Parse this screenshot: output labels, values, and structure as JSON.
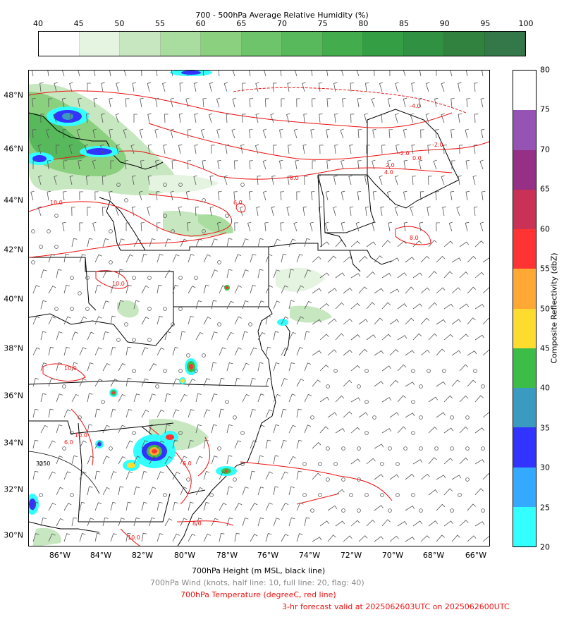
{
  "rh_colorbar": {
    "title": "700 - 500hPa Average Relative Humidity (%)",
    "ticks": [
      "40",
      "45",
      "50",
      "55",
      "60",
      "65",
      "70",
      "75",
      "80",
      "85",
      "90",
      "95",
      "100"
    ],
    "colors": [
      "#ffffff",
      "#e5f3e1",
      "#c7e7c0",
      "#a9dc9f",
      "#8bd07f",
      "#6dc46a",
      "#58b85c",
      "#43ad4e",
      "#339e43",
      "#2f9141",
      "#32823f",
      "#347748",
      "#386d4c"
    ]
  },
  "reflectivity_colorbar": {
    "label": "Composite Reflectivity (dbZ)",
    "ticks": [
      "20",
      "25",
      "30",
      "35",
      "40",
      "45",
      "50",
      "55",
      "60",
      "65",
      "70",
      "75",
      "80"
    ],
    "colors": [
      "#33ffff",
      "#33aaff",
      "#3333ff",
      "#3b9ac0",
      "#3bbd48",
      "#fddc2f",
      "#ffa934",
      "#ff3333",
      "#c93156",
      "#962f86",
      "#9553b4",
      "#ffffff"
    ]
  },
  "map": {
    "lat_labels": [
      "48°N",
      "46°N",
      "44°N",
      "42°N",
      "40°N",
      "38°N",
      "36°N",
      "34°N",
      "32°N",
      "30°N"
    ],
    "lon_labels": [
      "86°W",
      "84°W",
      "82°W",
      "80°W",
      "78°W",
      "76°W",
      "74°W",
      "72°W",
      "70°W",
      "68°W",
      "66°W"
    ],
    "temperature_contour_labels": [
      "-4.0",
      "-2.0",
      "-2.0",
      "0.0",
      "2.0",
      "4.0",
      "8.0",
      "6.0",
      "8.0",
      "10.0",
      "10.0",
      "10.0",
      "10.0",
      "6.0",
      "8.0",
      "6.0",
      "8.0",
      "10.0"
    ],
    "height_contour_label": "3250",
    "colors": {
      "temperature": "#ee1111",
      "height": "#000000",
      "wind": "#555555"
    }
  },
  "captions": {
    "height": "700hPa Height (m MSL, black line)",
    "wind": "700hPa Wind (knots, half line: 10, full line: 20, flag: 40)",
    "temperature": "700hPa Temperature (degreeC, red line)",
    "valid": "3-hr forecast valid at 2025062603UTC on 2025062600UTC"
  }
}
